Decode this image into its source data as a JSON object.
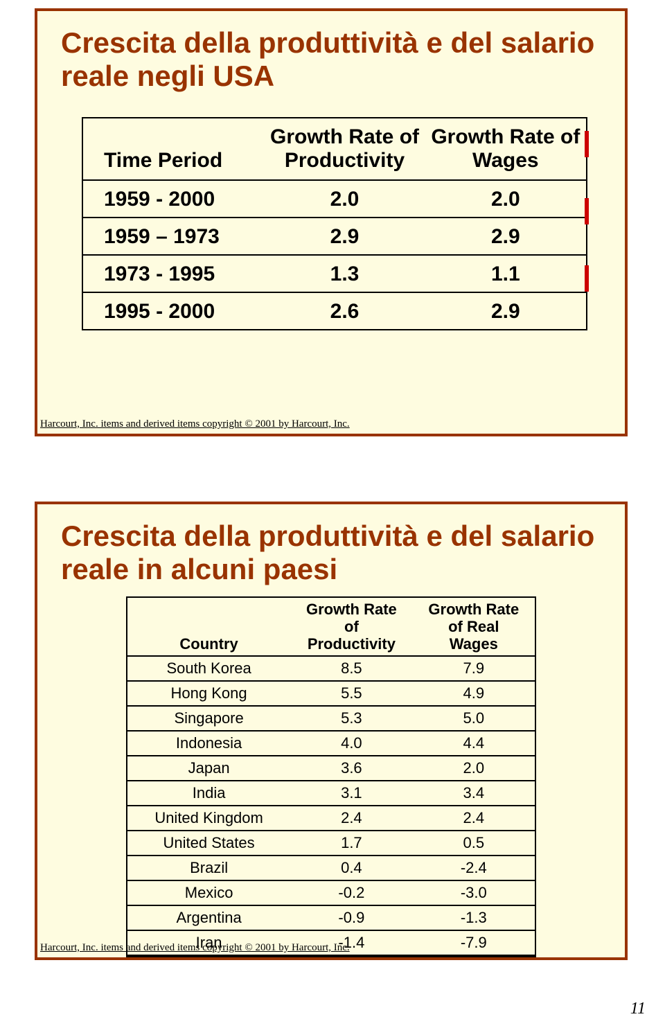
{
  "page_number": "11",
  "copyright_text": "Harcourt, Inc. items and derived items copyright © 2001 by Harcourt, Inc.",
  "slide1": {
    "title": "Crescita della produttività e del salario reale negli USA",
    "headers": [
      "Time Period",
      "Growth Rate of Productivity",
      "Growth Rate of Wages"
    ],
    "rows": [
      {
        "period": "1959 - 2000",
        "prod": "2.0",
        "wage": "2.0"
      },
      {
        "period": "1959 – 1973",
        "prod": "2.9",
        "wage": "2.9"
      },
      {
        "period": "1973 - 1995",
        "prod": "1.3",
        "wage": "1.1"
      },
      {
        "period": "1995 - 2000",
        "prod": "2.6",
        "wage": "2.9"
      }
    ]
  },
  "slide2": {
    "title": "Crescita della produttività e del salario reale in alcuni paesi",
    "headers": [
      "Country",
      "Growth Rate of Productivity",
      "Growth Rate of Real Wages"
    ],
    "rows": [
      {
        "country": "South Korea",
        "prod": "8.5",
        "wage": "7.9"
      },
      {
        "country": "Hong Kong",
        "prod": "5.5",
        "wage": "4.9"
      },
      {
        "country": "Singapore",
        "prod": "5.3",
        "wage": "5.0"
      },
      {
        "country": "Indonesia",
        "prod": "4.0",
        "wage": "4.4"
      },
      {
        "country": "Japan",
        "prod": "3.6",
        "wage": "2.0"
      },
      {
        "country": "India",
        "prod": "3.1",
        "wage": "3.4"
      },
      {
        "country": "United Kingdom",
        "prod": "2.4",
        "wage": "2.4"
      },
      {
        "country": "United States",
        "prod": "1.7",
        "wage": "0.5"
      },
      {
        "country": "Brazil",
        "prod": "0.4",
        "wage": "-2.4"
      },
      {
        "country": "Mexico",
        "prod": "-0.2",
        "wage": "-3.0"
      },
      {
        "country": "Argentina",
        "prod": "-0.9",
        "wage": "-1.3"
      },
      {
        "country": "Iran",
        "prod": "-1.4",
        "wage": "-7.9"
      }
    ]
  },
  "styling": {
    "slide_border_color": "#993300",
    "slide_background": "#fefce0",
    "title_color": "#993300",
    "table_border_color": "#000000",
    "red_mark_color": "#cc0000"
  }
}
